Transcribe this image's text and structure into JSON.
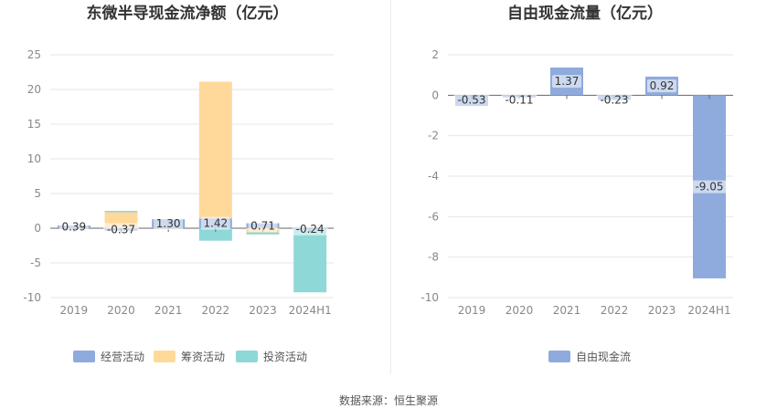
{
  "chart_data": [
    {
      "type": "bar",
      "stacked": true,
      "title": "东微半导现金流净额（亿元）",
      "categories": [
        "2019",
        "2020",
        "2021",
        "2022",
        "2023",
        "2024H1"
      ],
      "series": [
        {
          "name": "经营活动",
          "color": "#8faadc",
          "values": [
            0.39,
            -0.37,
            1.3,
            1.42,
            0.71,
            -0.24
          ]
        },
        {
          "name": "筹资活动",
          "color": "#ffd99a",
          "values": [
            0.0,
            2.3,
            0.0,
            19.7,
            -0.6,
            0.0
          ]
        },
        {
          "name": "投资活动",
          "color": "#8fd8d8",
          "values": [
            0.0,
            0.2,
            0.0,
            -1.8,
            -0.3,
            -9.0
          ]
        }
      ],
      "data_labels": [
        "0.39",
        "-0.37",
        "1.30",
        "1.42",
        "0.71",
        "-0.24"
      ],
      "ylim": [
        -10,
        25
      ],
      "yticks": [
        25,
        20,
        15,
        10,
        5,
        0,
        -5,
        -10
      ],
      "grid": true,
      "legend": "bottom"
    },
    {
      "type": "bar",
      "title": "自由现金流量（亿元）",
      "categories": [
        "2019",
        "2020",
        "2021",
        "2022",
        "2023",
        "2024H1"
      ],
      "series": [
        {
          "name": "自由现金流",
          "color": "#8faadc",
          "values": [
            -0.53,
            -0.11,
            1.37,
            -0.23,
            0.92,
            -9.05
          ]
        }
      ],
      "data_labels": [
        "-0.53",
        "-0.11",
        "1.37",
        "-0.23",
        "0.92",
        "-9.05"
      ],
      "ylim": [
        -10,
        2
      ],
      "yticks": [
        2,
        0,
        -2,
        -4,
        -6,
        -8,
        -10
      ],
      "grid": true,
      "legend": "bottom"
    }
  ],
  "footer": "数据来源：恒生聚源"
}
